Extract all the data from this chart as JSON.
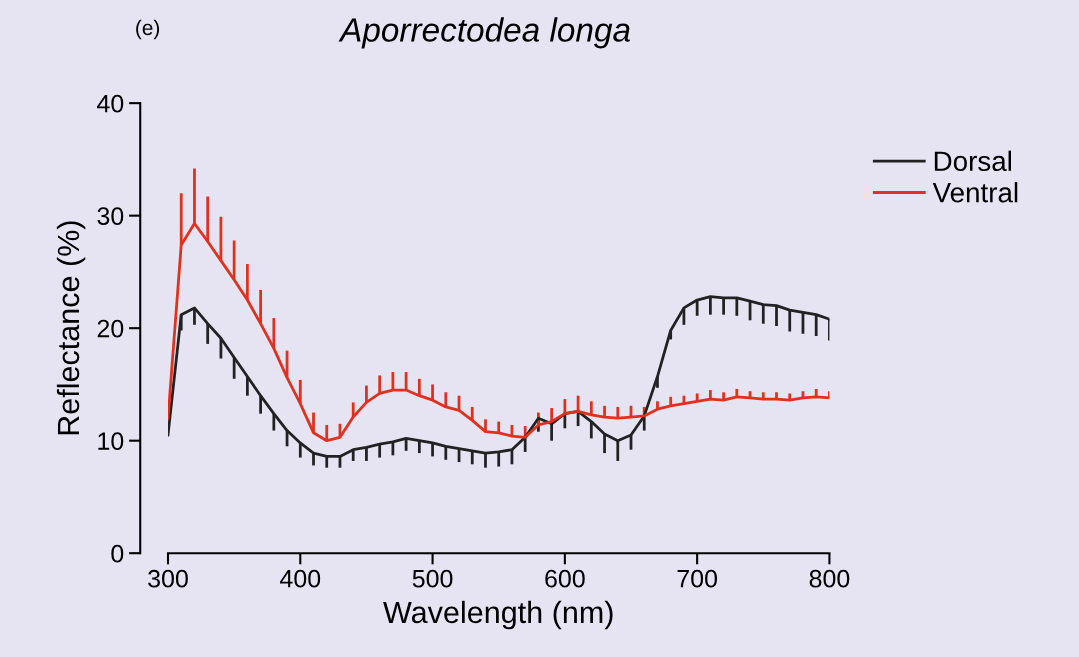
{
  "chart_data": {
    "type": "line",
    "title": "Aporrectodea longa",
    "xlabel": "Wavelength (nm)",
    "ylabel": "Reflectance (%)",
    "annotations": [
      "(e)"
    ],
    "x": [
      300,
      310,
      320,
      330,
      340,
      350,
      360,
      370,
      380,
      390,
      400,
      410,
      420,
      430,
      440,
      450,
      460,
      470,
      480,
      490,
      500,
      510,
      520,
      530,
      540,
      550,
      560,
      570,
      580,
      590,
      600,
      610,
      620,
      630,
      640,
      650,
      660,
      670,
      680,
      690,
      700,
      710,
      720,
      730,
      740,
      750,
      760,
      770,
      780,
      790,
      800
    ],
    "series": [
      {
        "name": "Dorsal",
        "color": "#222222",
        "values": [
          10.5,
          21.2,
          21.8,
          20.4,
          19.1,
          17.4,
          15.7,
          14.0,
          12.4,
          10.9,
          9.8,
          8.9,
          8.6,
          8.6,
          9.2,
          9.4,
          9.7,
          9.9,
          10.2,
          10.0,
          9.8,
          9.5,
          9.3,
          9.1,
          8.9,
          9.0,
          9.2,
          10.3,
          12.0,
          11.5,
          12.4,
          12.6,
          11.7,
          10.6,
          10.0,
          10.5,
          12.2,
          15.7,
          19.8,
          21.8,
          22.5,
          22.8,
          22.7,
          22.7,
          22.4,
          22.1,
          22.0,
          21.6,
          21.4,
          21.2,
          20.8
        ],
        "errors": [
          null,
          [
            19.8,
            21.2
          ],
          [
            20.3,
            21.8
          ],
          [
            18.6,
            20.4
          ],
          [
            17.3,
            19.1
          ],
          [
            15.5,
            17.4
          ],
          [
            14.0,
            15.7
          ],
          [
            12.4,
            14.0
          ],
          [
            10.9,
            12.4
          ],
          [
            9.5,
            10.9
          ],
          [
            8.5,
            9.8
          ],
          [
            7.8,
            8.9
          ],
          [
            7.6,
            8.6
          ],
          [
            7.6,
            8.6
          ],
          [
            8.2,
            9.2
          ],
          [
            8.2,
            9.4
          ],
          [
            8.5,
            9.7
          ],
          [
            8.7,
            9.9
          ],
          [
            9.1,
            10.2
          ],
          [
            8.9,
            10.0
          ],
          [
            8.6,
            9.8
          ],
          [
            8.3,
            9.5
          ],
          [
            8.1,
            9.3
          ],
          [
            7.9,
            9.1
          ],
          [
            7.6,
            8.9
          ],
          [
            7.7,
            9.0
          ],
          [
            7.9,
            9.2
          ],
          [
            9.0,
            10.3
          ],
          [
            10.8,
            12.0
          ],
          [
            10.0,
            11.5
          ],
          [
            11.1,
            12.4
          ],
          [
            11.3,
            12.6
          ],
          [
            10.2,
            11.7
          ],
          [
            8.9,
            10.6
          ],
          [
            8.2,
            10.0
          ],
          [
            9.2,
            10.5
          ],
          [
            10.9,
            12.2
          ],
          [
            14.7,
            15.7
          ],
          [
            19.0,
            19.8
          ],
          [
            20.3,
            21.8
          ],
          [
            21.1,
            22.5
          ],
          [
            21.2,
            22.8
          ],
          [
            21.2,
            22.7
          ],
          [
            21.1,
            22.7
          ],
          [
            20.7,
            22.4
          ],
          [
            20.4,
            22.1
          ],
          [
            20.2,
            22.0
          ],
          [
            19.7,
            21.6
          ],
          [
            19.5,
            21.4
          ],
          [
            19.3,
            21.2
          ],
          [
            18.9,
            20.8
          ]
        ]
      },
      {
        "name": "Ventral",
        "color": "#e0301e",
        "values": [
          12.0,
          27.4,
          29.3,
          27.7,
          26.0,
          24.3,
          22.5,
          20.4,
          18.2,
          15.6,
          13.3,
          10.7,
          10.0,
          10.3,
          12.1,
          13.4,
          14.2,
          14.5,
          14.5,
          14.0,
          13.6,
          13.0,
          12.7,
          11.8,
          10.8,
          10.7,
          10.4,
          10.3,
          11.4,
          11.7,
          12.4,
          12.6,
          12.3,
          12.1,
          12.0,
          12.1,
          12.2,
          12.8,
          13.1,
          13.3,
          13.5,
          13.7,
          13.6,
          13.9,
          13.8,
          13.7,
          13.7,
          13.6,
          13.8,
          13.9,
          13.8
        ],
        "errors": [
          null,
          [
            27.4,
            32.0
          ],
          [
            29.3,
            34.2
          ],
          [
            27.7,
            31.7
          ],
          [
            26.0,
            29.9
          ],
          [
            24.3,
            27.8
          ],
          [
            22.5,
            25.7
          ],
          [
            20.4,
            23.4
          ],
          [
            18.2,
            20.9
          ],
          [
            15.6,
            18.0
          ],
          [
            13.3,
            15.4
          ],
          [
            10.7,
            12.5
          ],
          [
            10.0,
            11.4
          ],
          [
            10.3,
            11.5
          ],
          [
            12.1,
            13.4
          ],
          [
            13.4,
            14.9
          ],
          [
            14.2,
            15.8
          ],
          [
            14.5,
            16.1
          ],
          [
            14.5,
            16.1
          ],
          [
            14.0,
            15.5
          ],
          [
            13.6,
            15.0
          ],
          [
            13.0,
            14.3
          ],
          [
            12.7,
            14.0
          ],
          [
            11.8,
            13.0
          ],
          [
            10.8,
            11.9
          ],
          [
            10.7,
            11.7
          ],
          [
            10.4,
            11.4
          ],
          [
            10.3,
            11.3
          ],
          [
            11.4,
            12.5
          ],
          [
            11.7,
            12.9
          ],
          [
            12.4,
            13.7
          ],
          [
            12.6,
            14.0
          ],
          [
            12.3,
            13.5
          ],
          [
            12.1,
            13.1
          ],
          [
            12.0,
            13.0
          ],
          [
            12.1,
            13.1
          ],
          [
            12.2,
            13.0
          ],
          [
            12.8,
            13.5
          ],
          [
            13.1,
            13.9
          ],
          [
            13.3,
            14.0
          ],
          [
            13.5,
            14.2
          ],
          [
            13.7,
            14.5
          ],
          [
            13.6,
            14.3
          ],
          [
            13.9,
            14.6
          ],
          [
            13.8,
            14.4
          ],
          [
            13.7,
            14.3
          ],
          [
            13.7,
            14.3
          ],
          [
            13.6,
            14.2
          ],
          [
            13.8,
            14.4
          ],
          [
            13.9,
            14.6
          ],
          [
            13.8,
            14.4
          ]
        ]
      }
    ],
    "xlim": [
      300,
      800
    ],
    "xticks": [
      300,
      400,
      500,
      600,
      700,
      800
    ],
    "ylim": [
      0,
      40
    ],
    "yticks": [
      0,
      10,
      20,
      30,
      40
    ],
    "grid": false,
    "legend": "top right",
    "marker": "none",
    "line_style": "solid"
  }
}
